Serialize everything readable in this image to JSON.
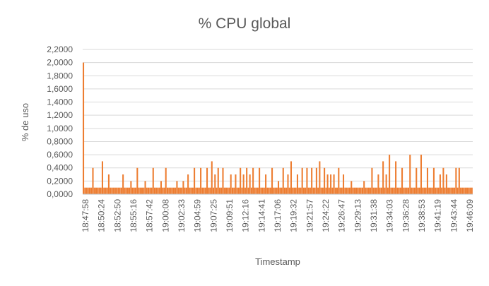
{
  "chart_data": {
    "type": "bar",
    "title": "% CPU global",
    "xlabel": "Timestamp",
    "ylabel": "% de uso",
    "ylim": [
      0,
      2.2
    ],
    "y_ticks": [
      "0,0000",
      "0,2000",
      "0,4000",
      "0,6000",
      "0,8000",
      "1,0000",
      "1,2000",
      "1,4000",
      "1,6000",
      "1,8000",
      "2,0000",
      "2,2000"
    ],
    "x_ticks": [
      "18:47:58",
      "18:50:24",
      "18:52:50",
      "18:55:16",
      "18:57:42",
      "19:00:08",
      "19:02:33",
      "19:04:59",
      "19:07:25",
      "19:09:51",
      "19:12:16",
      "19:14:41",
      "19:17:06",
      "19:19:32",
      "19:21:57",
      "19:24:22",
      "19:26:47",
      "19:29:13",
      "19:31:38",
      "19:34:03",
      "19:36:28",
      "19:38:53",
      "19:41:19",
      "19:43:44",
      "19:46:09"
    ],
    "grid": true,
    "legend": "none",
    "series": [
      {
        "color": "#ED7D31",
        "values": [
          2.0,
          0.1,
          0.1,
          0.1,
          0.1,
          0.1,
          0.4,
          0.1,
          0.1,
          0.1,
          0.1,
          0.1,
          0.5,
          0.1,
          0.1,
          0.1,
          0.3,
          0.1,
          0.1,
          0.1,
          0.1,
          0.1,
          0.1,
          0.1,
          0.1,
          0.3,
          0.1,
          0.1,
          0.1,
          0.1,
          0.2,
          0.1,
          0.1,
          0.1,
          0.4,
          0.1,
          0.1,
          0.1,
          0.1,
          0.2,
          0.1,
          0.1,
          0.1,
          0.1,
          0.4,
          0.1,
          0.1,
          0.1,
          0.1,
          0.2,
          0.1,
          0.1,
          0.4,
          0.1,
          0.1,
          0.1,
          0.1,
          0.1,
          0.1,
          0.2,
          0.1,
          0.1,
          0.1,
          0.2,
          0.1,
          0.1,
          0.3,
          0.1,
          0.1,
          0.1,
          0.4,
          0.1,
          0.1,
          0.1,
          0.4,
          0.1,
          0.1,
          0.1,
          0.4,
          0.1,
          0.1,
          0.5,
          0.1,
          0.3,
          0.1,
          0.4,
          0.1,
          0.1,
          0.4,
          0.1,
          0.1,
          0.1,
          0.1,
          0.3,
          0.1,
          0.1,
          0.3,
          0.1,
          0.1,
          0.4,
          0.1,
          0.3,
          0.1,
          0.4,
          0.1,
          0.3,
          0.1,
          0.4,
          0.1,
          0.1,
          0.1,
          0.4,
          0.1,
          0.1,
          0.1,
          0.3,
          0.1,
          0.1,
          0.1,
          0.4,
          0.1,
          0.1,
          0.1,
          0.2,
          0.1,
          0.1,
          0.4,
          0.1,
          0.1,
          0.3,
          0.1,
          0.5,
          0.1,
          0.1,
          0.1,
          0.3,
          0.1,
          0.1,
          0.4,
          0.1,
          0.1,
          0.4,
          0.1,
          0.1,
          0.4,
          0.1,
          0.1,
          0.4,
          0.1,
          0.5,
          0.1,
          0.1,
          0.4,
          0.1,
          0.3,
          0.1,
          0.3,
          0.1,
          0.3,
          0.1,
          0.1,
          0.4,
          0.1,
          0.1,
          0.3,
          0.1,
          0.1,
          0.1,
          0.1,
          0.2,
          0.1,
          0.1,
          0.1,
          0.1,
          0.1,
          0.1,
          0.1,
          0.2,
          0.1,
          0.1,
          0.1,
          0.1,
          0.4,
          0.1,
          0.1,
          0.1,
          0.3,
          0.1,
          0.1,
          0.5,
          0.1,
          0.3,
          0.1,
          0.6,
          0.1,
          0.1,
          0.1,
          0.5,
          0.1,
          0.1,
          0.1,
          0.4,
          0.1,
          0.1,
          0.1,
          0.1,
          0.6,
          0.1,
          0.1,
          0.1,
          0.4,
          0.1,
          0.1,
          0.6,
          0.1,
          0.1,
          0.1,
          0.4,
          0.1,
          0.1,
          0.1,
          0.4,
          0.1,
          0.1,
          0.1,
          0.3,
          0.1,
          0.4,
          0.1,
          0.3,
          0.1,
          0.1,
          0.1,
          0.1,
          0.1,
          0.4,
          0.1,
          0.4,
          0.1,
          0.1,
          0.1,
          0.1,
          0.1,
          0.1,
          0.1,
          0.1
        ]
      }
    ]
  }
}
